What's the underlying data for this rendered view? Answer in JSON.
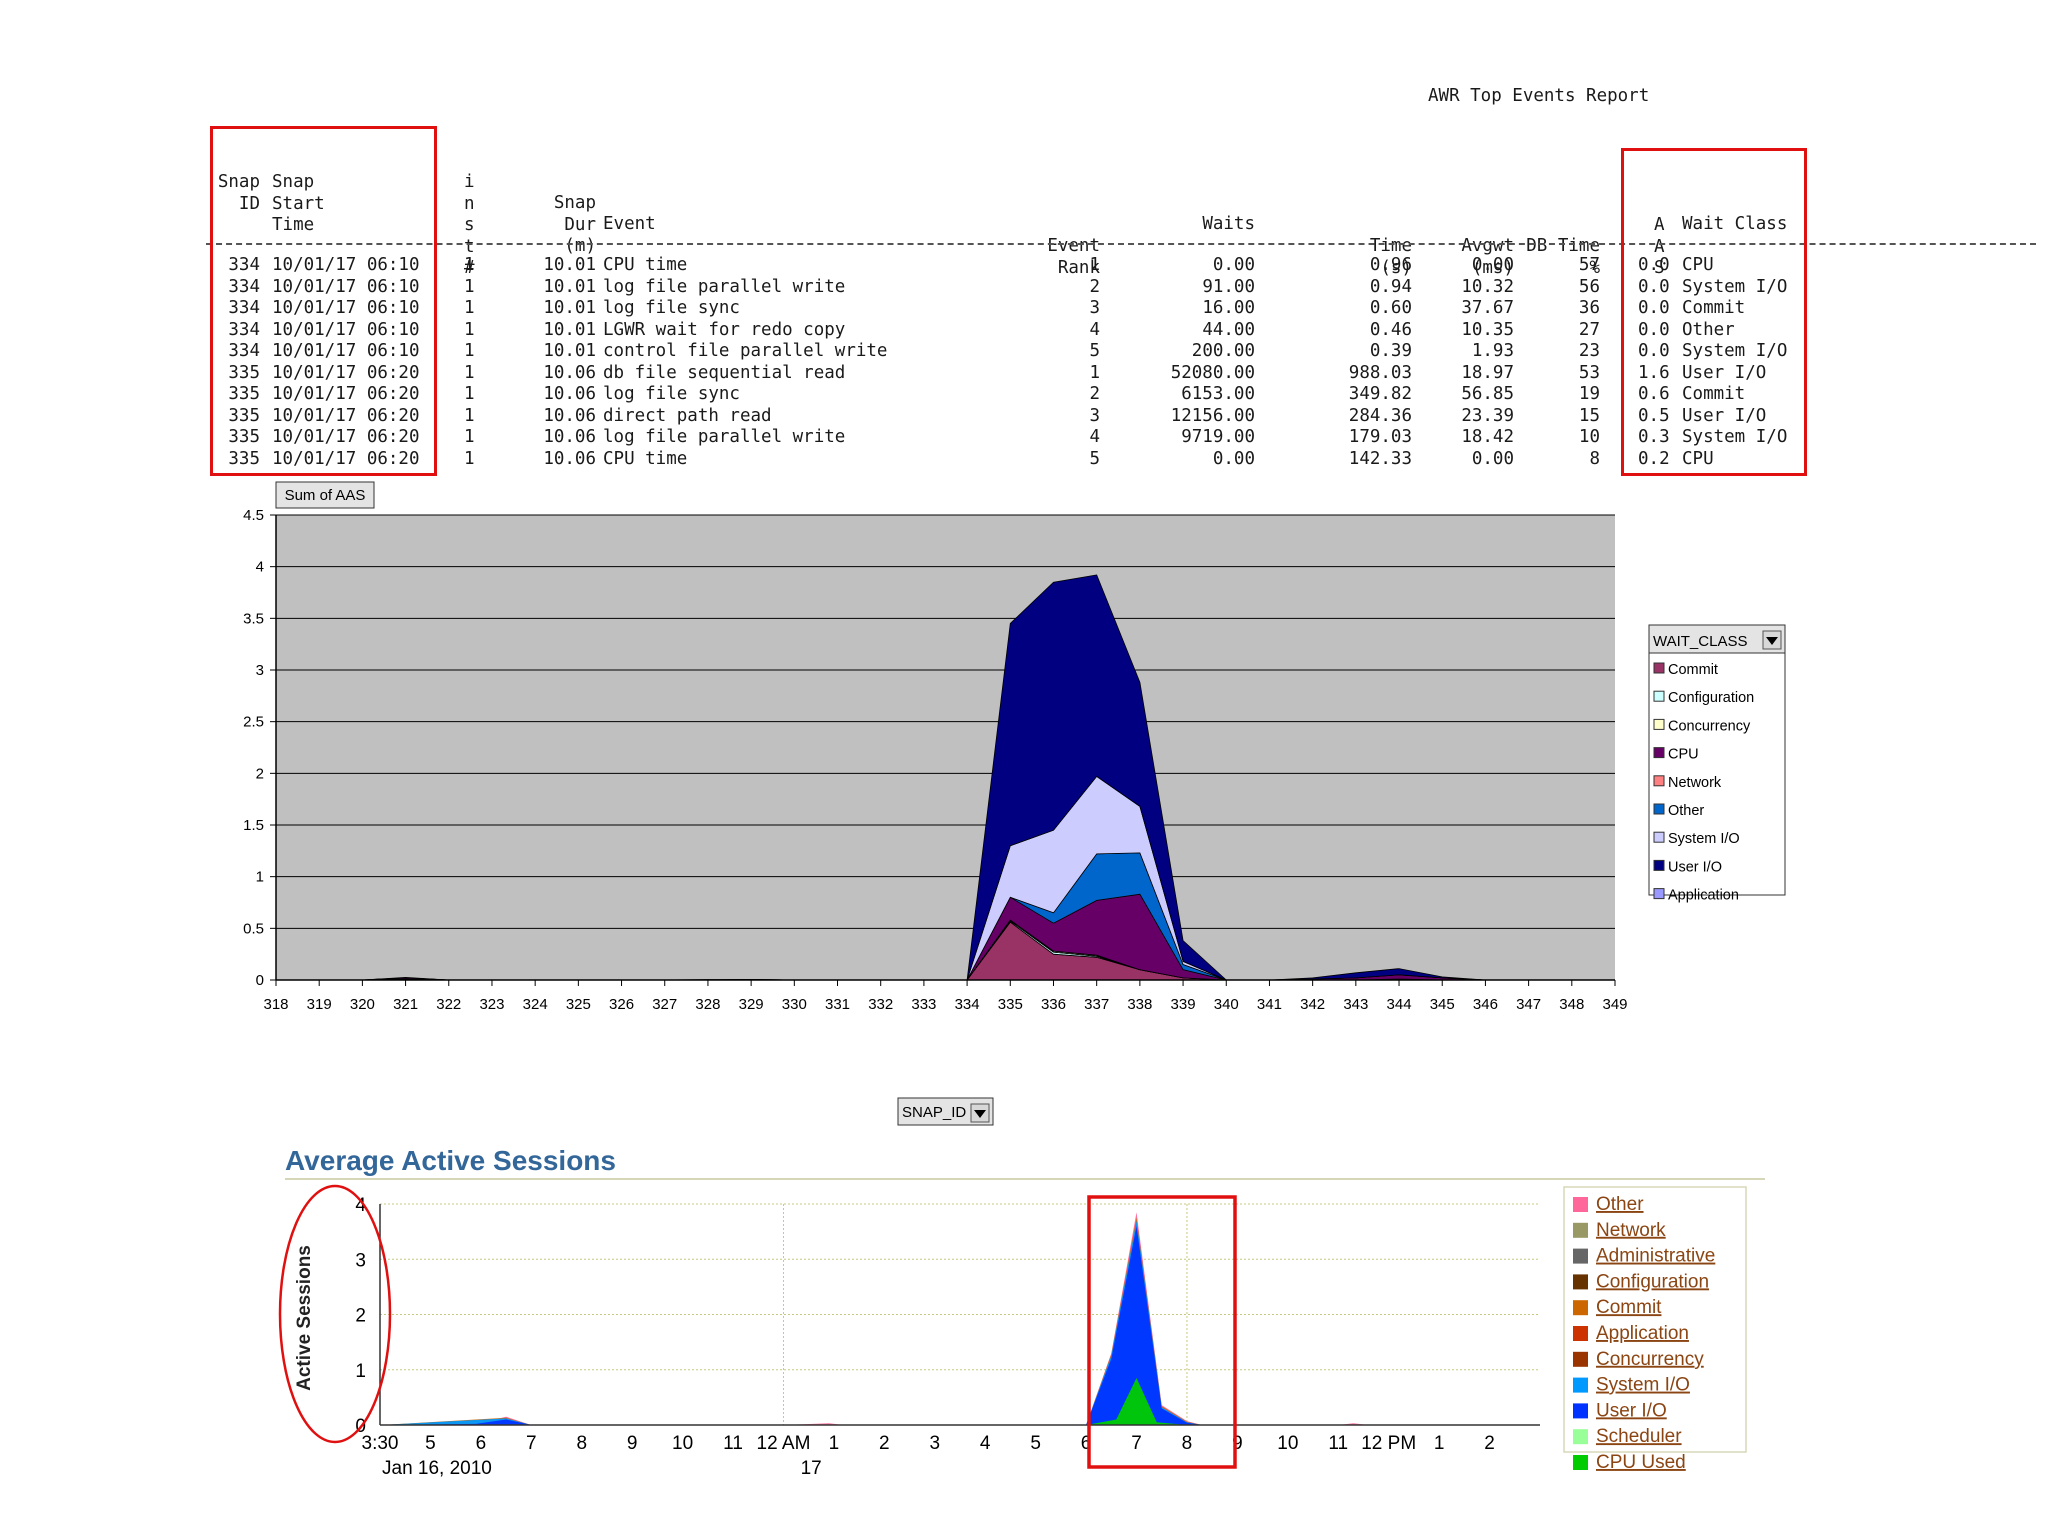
{
  "report": {
    "title": "AWR Top Events Report",
    "headers": {
      "snap_id": [
        "",
        "",
        "Snap",
        "ID"
      ],
      "snap_start": [
        "",
        "Snap",
        "Start",
        "Time"
      ],
      "inst": [
        "i",
        "n",
        "s",
        "t",
        "#"
      ],
      "snap_dur": [
        "",
        "Snap",
        "Dur",
        "(m)"
      ],
      "event": "Event",
      "rank": [
        "Event",
        "Rank"
      ],
      "waits": "Waits",
      "time": [
        "Time",
        "(s)"
      ],
      "avgwt": [
        "Avgwt",
        "(ms)"
      ],
      "dbtime": [
        "DB Time",
        "%"
      ],
      "aas": [
        "A",
        "A",
        "S"
      ],
      "wait_class": "Wait Class"
    },
    "rows": [
      {
        "snap_id": "334",
        "start": "10/01/17 06:10",
        "inst": "1",
        "dur": "10.01",
        "event": "CPU time",
        "rank": "1",
        "waits": "0.00",
        "time": "0.96",
        "avgwt": "0.00",
        "dbtime": "57",
        "aas": "0.0",
        "wait_class": "CPU"
      },
      {
        "snap_id": "334",
        "start": "10/01/17 06:10",
        "inst": "1",
        "dur": "10.01",
        "event": "log file parallel write",
        "rank": "2",
        "waits": "91.00",
        "time": "0.94",
        "avgwt": "10.32",
        "dbtime": "56",
        "aas": "0.0",
        "wait_class": "System I/O"
      },
      {
        "snap_id": "334",
        "start": "10/01/17 06:10",
        "inst": "1",
        "dur": "10.01",
        "event": "log file sync",
        "rank": "3",
        "waits": "16.00",
        "time": "0.60",
        "avgwt": "37.67",
        "dbtime": "36",
        "aas": "0.0",
        "wait_class": "Commit"
      },
      {
        "snap_id": "334",
        "start": "10/01/17 06:10",
        "inst": "1",
        "dur": "10.01",
        "event": "LGWR wait for redo copy",
        "rank": "4",
        "waits": "44.00",
        "time": "0.46",
        "avgwt": "10.35",
        "dbtime": "27",
        "aas": "0.0",
        "wait_class": "Other"
      },
      {
        "snap_id": "334",
        "start": "10/01/17 06:10",
        "inst": "1",
        "dur": "10.01",
        "event": "control file parallel write",
        "rank": "5",
        "waits": "200.00",
        "time": "0.39",
        "avgwt": "1.93",
        "dbtime": "23",
        "aas": "0.0",
        "wait_class": "System I/O"
      },
      {
        "snap_id": "335",
        "start": "10/01/17 06:20",
        "inst": "1",
        "dur": "10.06",
        "event": "db file sequential read",
        "rank": "1",
        "waits": "52080.00",
        "time": "988.03",
        "avgwt": "18.97",
        "dbtime": "53",
        "aas": "1.6",
        "wait_class": "User I/O"
      },
      {
        "snap_id": "335",
        "start": "10/01/17 06:20",
        "inst": "1",
        "dur": "10.06",
        "event": "log file sync",
        "rank": "2",
        "waits": "6153.00",
        "time": "349.82",
        "avgwt": "56.85",
        "dbtime": "19",
        "aas": "0.6",
        "wait_class": "Commit"
      },
      {
        "snap_id": "335",
        "start": "10/01/17 06:20",
        "inst": "1",
        "dur": "10.06",
        "event": "direct path read",
        "rank": "3",
        "waits": "12156.00",
        "time": "284.36",
        "avgwt": "23.39",
        "dbtime": "15",
        "aas": "0.5",
        "wait_class": "User I/O"
      },
      {
        "snap_id": "335",
        "start": "10/01/17 06:20",
        "inst": "1",
        "dur": "10.06",
        "event": "log file parallel write",
        "rank": "4",
        "waits": "9719.00",
        "time": "179.03",
        "avgwt": "18.42",
        "dbtime": "10",
        "aas": "0.3",
        "wait_class": "System I/O"
      },
      {
        "snap_id": "335",
        "start": "10/01/17 06:20",
        "inst": "1",
        "dur": "10.06",
        "event": "CPU time",
        "rank": "5",
        "waits": "0.00",
        "time": "142.33",
        "avgwt": "0.00",
        "dbtime": "8",
        "aas": "0.2",
        "wait_class": "CPU"
      }
    ]
  },
  "chart_data": [
    {
      "type": "area",
      "title": "",
      "measure_button": "Sum of AAS",
      "field_button": "SNAP_ID",
      "legend_title": "WAIT_CLASS",
      "legend_position": "right",
      "grid": true,
      "ylim": [
        0,
        4.5
      ],
      "yticks": [
        "0",
        "0.5",
        "1",
        "1.5",
        "2",
        "2.5",
        "3",
        "3.5",
        "4",
        "4.5"
      ],
      "categories": [
        318,
        319,
        320,
        321,
        322,
        323,
        324,
        325,
        326,
        327,
        328,
        329,
        330,
        331,
        332,
        333,
        334,
        335,
        336,
        337,
        338,
        339,
        340,
        341,
        342,
        343,
        344,
        345,
        346,
        347,
        348,
        349
      ],
      "series": [
        {
          "name": "Commit",
          "color": "#993366",
          "values": [
            0,
            0,
            0,
            0.01,
            0,
            0,
            0,
            0,
            0,
            0,
            0,
            0,
            0,
            0,
            0,
            0,
            0,
            0.56,
            0.25,
            0.22,
            0.1,
            0.02,
            0,
            0,
            0,
            0,
            0.01,
            0,
            0,
            0,
            0,
            0
          ]
        },
        {
          "name": "Configuration",
          "color": "#ccffff",
          "values": [
            0,
            0,
            0,
            0,
            0,
            0,
            0,
            0,
            0,
            0,
            0,
            0,
            0,
            0,
            0,
            0,
            0,
            0.01,
            0.02,
            0.01,
            0,
            0,
            0,
            0,
            0,
            0,
            0,
            0,
            0,
            0,
            0,
            0
          ]
        },
        {
          "name": "Concurrency",
          "color": "#ffffcc",
          "values": [
            0,
            0,
            0,
            0,
            0,
            0,
            0,
            0,
            0,
            0,
            0,
            0,
            0,
            0,
            0,
            0,
            0,
            0.01,
            0.01,
            0.01,
            0,
            0,
            0,
            0,
            0,
            0,
            0,
            0,
            0,
            0,
            0,
            0
          ]
        },
        {
          "name": "CPU",
          "color": "#660066",
          "values": [
            0,
            0,
            0,
            0.01,
            0,
            0,
            0,
            0,
            0,
            0,
            0,
            0.005,
            0,
            0,
            0,
            0,
            0,
            0.22,
            0.27,
            0.53,
            0.73,
            0.08,
            0,
            0,
            0.01,
            0.02,
            0.04,
            0.02,
            0,
            0,
            0,
            0
          ]
        },
        {
          "name": "Network",
          "color": "#ff8080",
          "values": [
            0,
            0,
            0,
            0,
            0,
            0,
            0,
            0,
            0,
            0,
            0,
            0,
            0,
            0,
            0,
            0,
            0,
            0,
            0,
            0,
            0,
            0,
            0,
            0,
            0,
            0,
            0,
            0,
            0,
            0,
            0,
            0
          ]
        },
        {
          "name": "Other",
          "color": "#0066cc",
          "values": [
            0,
            0,
            0,
            0,
            0,
            0,
            0,
            0,
            0,
            0,
            0,
            0,
            0,
            0,
            0,
            0,
            0,
            0,
            0.1,
            0.45,
            0.4,
            0.05,
            0,
            0,
            0,
            0,
            0,
            0,
            0,
            0,
            0,
            0
          ]
        },
        {
          "name": "System I/O",
          "color": "#ccccff",
          "values": [
            0,
            0,
            0,
            0,
            0,
            0,
            0,
            0,
            0,
            0,
            0,
            0,
            0,
            0,
            0,
            0,
            0,
            0.5,
            0.8,
            0.75,
            0.45,
            0.03,
            0,
            0,
            0,
            0,
            0,
            0,
            0,
            0,
            0,
            0
          ]
        },
        {
          "name": "User I/O",
          "color": "#000080",
          "values": [
            0,
            0,
            0,
            0.005,
            0,
            0,
            0,
            0,
            0,
            0,
            0.005,
            0,
            0,
            0,
            0,
            0,
            0,
            2.15,
            2.4,
            1.95,
            1.2,
            0.2,
            0,
            0,
            0.01,
            0.05,
            0.06,
            0.01,
            0,
            0,
            0,
            0
          ]
        },
        {
          "name": "Application",
          "color": "#9999ff",
          "values": [
            0,
            0,
            0,
            0,
            0,
            0,
            0,
            0,
            0,
            0,
            0,
            0,
            0,
            0,
            0,
            0,
            0,
            0,
            0,
            0,
            0,
            0,
            0,
            0,
            0,
            0,
            0,
            0,
            0,
            0,
            0,
            0
          ]
        }
      ]
    },
    {
      "type": "area",
      "title": "Average Active Sessions",
      "ylabel": "Active Sessions",
      "ylim": [
        0,
        4
      ],
      "yticks": [
        "0",
        "1",
        "2",
        "3",
        "4"
      ],
      "legend_position": "right",
      "x": [
        0,
        1,
        2,
        3,
        4,
        5,
        6,
        7,
        8,
        9,
        10,
        11,
        12,
        13,
        14,
        15,
        16,
        17,
        18,
        19,
        20,
        21,
        22,
        23,
        24
      ],
      "xtick_labels": [
        "3:30",
        "5",
        "6",
        "7",
        "8",
        "9",
        "10",
        "11",
        "12 AM",
        "1",
        "2",
        "3",
        "4",
        "5",
        "6",
        "7",
        "8",
        "9",
        "10",
        "11",
        "12 PM",
        "1",
        "2"
      ],
      "xtick_positions": [
        0,
        1,
        2,
        3,
        4,
        5,
        6,
        7,
        8,
        9,
        10,
        11,
        12,
        13,
        14,
        15,
        16,
        17,
        18,
        19,
        20,
        21,
        22
      ],
      "date_labels": [
        {
          "label": "Jan 16, 2010",
          "at": 0
        },
        {
          "label": "17",
          "at": 8.3
        }
      ],
      "legend": [
        {
          "name": "Other",
          "color": "#ff6699"
        },
        {
          "name": "Network",
          "color": "#999966"
        },
        {
          "name": "Administrative",
          "color": "#666666"
        },
        {
          "name": "Configuration",
          "color": "#663300"
        },
        {
          "name": "Commit",
          "color": "#cc6600"
        },
        {
          "name": "Application",
          "color": "#cc3300"
        },
        {
          "name": "Concurrency",
          "color": "#993300"
        },
        {
          "name": "System I/O",
          "color": "#0099ff"
        },
        {
          "name": "User I/O",
          "color": "#0033ff"
        },
        {
          "name": "Scheduler",
          "color": "#99ff99"
        },
        {
          "name": "CPU Used",
          "color": "#00cc00"
        }
      ],
      "series": [
        {
          "name": "CPU Used",
          "color": "#00cc00",
          "points": [
            [
              0,
              0
            ],
            [
              14,
              0
            ],
            [
              14.6,
              0.1
            ],
            [
              15,
              0.85
            ],
            [
              15.4,
              0.05
            ],
            [
              16,
              0
            ],
            [
              23,
              0
            ]
          ]
        },
        {
          "name": "User I/O",
          "color": "#0033ff",
          "points": [
            [
              0,
              0
            ],
            [
              1.9,
              0.02
            ],
            [
              2.5,
              0.1
            ],
            [
              2.8,
              0.04
            ],
            [
              3,
              0
            ],
            [
              14,
              0
            ],
            [
              14.5,
              1.2
            ],
            [
              15,
              3.6
            ],
            [
              15.5,
              0.3
            ],
            [
              16,
              0.04
            ],
            [
              16.3,
              0
            ],
            [
              23,
              0
            ]
          ]
        },
        {
          "name": "System I/O",
          "color": "#0099ff",
          "points": [
            [
              0,
              0
            ],
            [
              2.5,
              0.12
            ],
            [
              3,
              0
            ],
            [
              14,
              0
            ],
            [
              14.5,
              1.25
            ],
            [
              15,
              3.7
            ],
            [
              15.5,
              0.32
            ],
            [
              16,
              0.05
            ],
            [
              16.3,
              0
            ],
            [
              23,
              0
            ]
          ]
        },
        {
          "name": "Commit",
          "color": "#cc6600",
          "points": [
            [
              0,
              0
            ],
            [
              2.5,
              0.13
            ],
            [
              3,
              0
            ],
            [
              14,
              0
            ],
            [
              14.5,
              1.28
            ],
            [
              15,
              3.75
            ],
            [
              15.5,
              0.34
            ],
            [
              16,
              0.06
            ],
            [
              16.3,
              0
            ],
            [
              23,
              0
            ]
          ]
        },
        {
          "name": "Other",
          "color": "#ff6699",
          "points": [
            [
              0,
              0
            ],
            [
              1.6,
              0.04
            ],
            [
              1.9,
              0.02
            ],
            [
              2.5,
              0.15
            ],
            [
              3,
              0
            ],
            [
              8,
              0
            ],
            [
              8.9,
              0.03
            ],
            [
              9.2,
              0
            ],
            [
              14,
              0
            ],
            [
              14.5,
              1.3
            ],
            [
              15,
              3.85
            ],
            [
              15.5,
              0.36
            ],
            [
              16,
              0.07
            ],
            [
              16.3,
              0
            ],
            [
              19,
              0
            ],
            [
              19.3,
              0.03
            ],
            [
              19.6,
              0
            ],
            [
              23,
              0
            ]
          ]
        }
      ]
    }
  ]
}
